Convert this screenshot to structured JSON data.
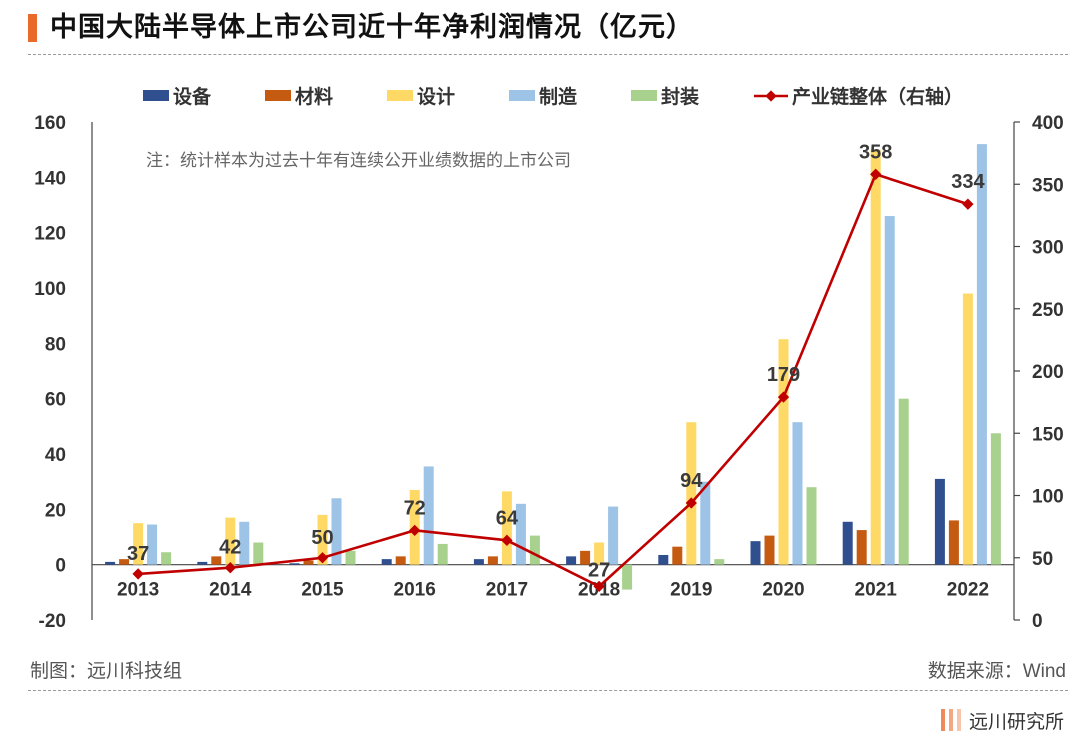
{
  "header": {
    "title": "中国大陆半导体上市公司近十年净利润情况（亿元）"
  },
  "footer": {
    "credit": "制图：远川科技组",
    "source": "数据来源：Wind",
    "brand": "远川研究所"
  },
  "chart_data": {
    "type": "bar",
    "categories": [
      "2013",
      "2014",
      "2015",
      "2016",
      "2017",
      "2018",
      "2019",
      "2020",
      "2021",
      "2022"
    ],
    "series": [
      {
        "name": "设备",
        "color": "#2f4f8f",
        "values": [
          1,
          1,
          0.5,
          2,
          2,
          3,
          3.5,
          8.5,
          15.5,
          31
        ]
      },
      {
        "name": "材料",
        "color": "#c55a11",
        "values": [
          2,
          3,
          1.5,
          3,
          3,
          5,
          6.5,
          10.5,
          12.5,
          16
        ]
      },
      {
        "name": "设计",
        "color": "#ffd966",
        "values": [
          15,
          17,
          18,
          27,
          26.5,
          8,
          51.5,
          81.5,
          150,
          98
        ]
      },
      {
        "name": "制造",
        "color": "#9dc3e6",
        "values": [
          14.5,
          15.5,
          24,
          35.5,
          22,
          21,
          30,
          51.5,
          126,
          152
        ]
      },
      {
        "name": "封装",
        "color": "#a9d18e",
        "values": [
          4.5,
          8,
          5,
          7.5,
          10.5,
          -9,
          2,
          28,
          60,
          47.5
        ]
      }
    ],
    "line": {
      "name": "产业链整体（右轴）",
      "color": "#c00000",
      "values": [
        37,
        42,
        50,
        72,
        64,
        27,
        94,
        179,
        358,
        334
      ]
    },
    "note": "注：统计样本为过去十年有连续公开业绩数据的上市公司",
    "ylim": [
      -20,
      160
    ],
    "y_ticks": [
      -20,
      0,
      20,
      40,
      60,
      80,
      100,
      120,
      140,
      160
    ],
    "y2lim": [
      0,
      400
    ],
    "y2_ticks": [
      0,
      50,
      100,
      150,
      200,
      250,
      300,
      350,
      400
    ],
    "legend": "top"
  }
}
